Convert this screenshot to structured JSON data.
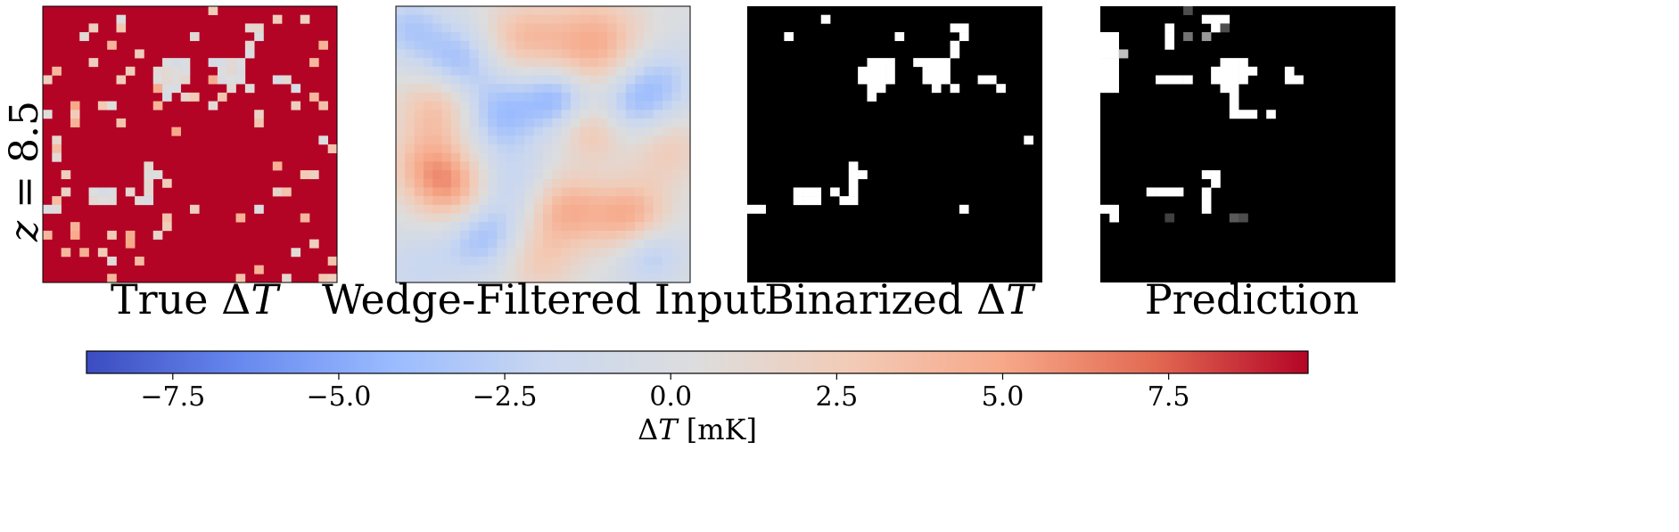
{
  "chart_data": {
    "type": "heatmap",
    "row_label": {
      "text": "z = 8.5",
      "var": "z",
      "value": "8.5"
    },
    "panels": [
      {
        "title": "True ΔT",
        "title_prefix": "True ",
        "title_symbol": "Δ",
        "title_var": "T",
        "colormap": "coolwarm",
        "background": "#b40426",
        "grid_size": 32
      },
      {
        "title": "Wedge-Filtered Input",
        "colormap": "coolwarm",
        "grid_size": 32
      },
      {
        "title": "Binarized ΔT",
        "title_prefix": "Binarized ",
        "title_symbol": "Δ",
        "title_var": "T",
        "colormap": "binary",
        "background": "#000000",
        "foreground": "#ffffff",
        "grid_size": 32
      },
      {
        "title": "Prediction",
        "colormap": "gray",
        "background": "#000000",
        "foreground": "#ffffff",
        "grid_size": 32
      }
    ],
    "colorbar": {
      "colormap": "coolwarm",
      "range": [
        -8.8,
        9.6
      ],
      "ticks": [
        -7.5,
        -5.0,
        -2.5,
        0.0,
        2.5,
        5.0,
        7.5
      ],
      "tick_labels": [
        "−7.5",
        "−5.0",
        "−2.5",
        "0.0",
        "2.5",
        "5.0",
        "7.5"
      ],
      "label": "ΔT [mK]",
      "label_symbol": "Δ",
      "label_var": "T",
      "label_unit": " [mK]",
      "orientation": "horizontal",
      "colors": [
        "#3b4cc0",
        "#6788ee",
        "#9abbff",
        "#c9d7f0",
        "#dddddd",
        "#f2cbb7",
        "#f7a889",
        "#e26952",
        "#b40426"
      ]
    },
    "binary_cells": [
      [
        1,
        8
      ],
      [
        2,
        22
      ],
      [
        2,
        23
      ],
      [
        3,
        23
      ],
      [
        3,
        4
      ],
      [
        4,
        22
      ],
      [
        5,
        22
      ],
      [
        3,
        16
      ],
      [
        6,
        18
      ],
      [
        6,
        19
      ],
      [
        6,
        20
      ],
      [
        7,
        19
      ],
      [
        7,
        20
      ],
      [
        8,
        19
      ],
      [
        6,
        21
      ],
      [
        7,
        21
      ],
      [
        8,
        20
      ],
      [
        8,
        21
      ],
      [
        9,
        20
      ],
      [
        9,
        22
      ],
      [
        6,
        13
      ],
      [
        6,
        14
      ],
      [
        6,
        15
      ],
      [
        7,
        12
      ],
      [
        7,
        13
      ],
      [
        7,
        14
      ],
      [
        7,
        15
      ],
      [
        8,
        12
      ],
      [
        8,
        13
      ],
      [
        8,
        14
      ],
      [
        8,
        15
      ],
      [
        9,
        13
      ],
      [
        9,
        14
      ],
      [
        10,
        13
      ],
      [
        8,
        25
      ],
      [
        8,
        26
      ],
      [
        9,
        27
      ],
      [
        15,
        30
      ],
      [
        18,
        11
      ],
      [
        19,
        11
      ],
      [
        19,
        12
      ],
      [
        20,
        11
      ],
      [
        21,
        11
      ],
      [
        22,
        11
      ],
      [
        22,
        10
      ],
      [
        21,
        9
      ],
      [
        21,
        5
      ],
      [
        21,
        6
      ],
      [
        21,
        7
      ],
      [
        22,
        5
      ],
      [
        22,
        6
      ],
      [
        22,
        7
      ],
      [
        23,
        0
      ],
      [
        23,
        1
      ],
      [
        23,
        23
      ]
    ],
    "prediction_cells": [
      [
        1,
        11
      ],
      [
        2,
        7
      ],
      [
        3,
        7
      ],
      [
        4,
        7
      ],
      [
        1,
        12
      ],
      [
        1,
        13
      ],
      [
        2,
        12
      ],
      [
        3,
        0
      ],
      [
        4,
        0
      ],
      [
        5,
        0
      ],
      [
        6,
        0
      ],
      [
        7,
        0
      ],
      [
        8,
        0
      ],
      [
        9,
        0
      ],
      [
        3,
        1
      ],
      [
        4,
        1
      ],
      [
        5,
        1
      ],
      [
        6,
        1
      ],
      [
        7,
        1
      ],
      [
        8,
        1
      ],
      [
        9,
        1
      ],
      [
        8,
        6
      ],
      [
        8,
        7
      ],
      [
        8,
        8
      ],
      [
        8,
        9
      ],
      [
        7,
        16
      ],
      [
        7,
        20
      ],
      [
        8,
        20
      ],
      [
        8,
        21
      ],
      [
        6,
        13
      ],
      [
        6,
        14
      ],
      [
        6,
        15
      ],
      [
        7,
        12
      ],
      [
        7,
        13
      ],
      [
        7,
        14
      ],
      [
        7,
        15
      ],
      [
        8,
        12
      ],
      [
        8,
        13
      ],
      [
        8,
        14
      ],
      [
        8,
        15
      ],
      [
        9,
        13
      ],
      [
        9,
        14
      ],
      [
        10,
        14
      ],
      [
        11,
        14
      ],
      [
        12,
        14
      ],
      [
        12,
        15
      ],
      [
        12,
        16
      ],
      [
        12,
        18
      ],
      [
        19,
        11
      ],
      [
        19,
        12
      ],
      [
        20,
        12
      ],
      [
        21,
        5
      ],
      [
        21,
        6
      ],
      [
        21,
        7
      ],
      [
        21,
        8
      ],
      [
        21,
        11
      ],
      [
        22,
        11
      ],
      [
        23,
        11
      ],
      [
        23,
        0
      ],
      [
        23,
        1
      ],
      [
        24,
        1
      ]
    ],
    "prediction_gray_cells": [
      [
        5,
        2,
        0.75
      ],
      [
        3,
        11,
        0.6
      ],
      [
        3,
        9,
        0.45
      ],
      [
        0,
        9,
        0.3
      ],
      [
        24,
        7,
        0.25
      ],
      [
        24,
        14,
        0.35
      ],
      [
        24,
        15,
        0.3
      ],
      [
        2,
        13,
        0.3
      ]
    ]
  }
}
